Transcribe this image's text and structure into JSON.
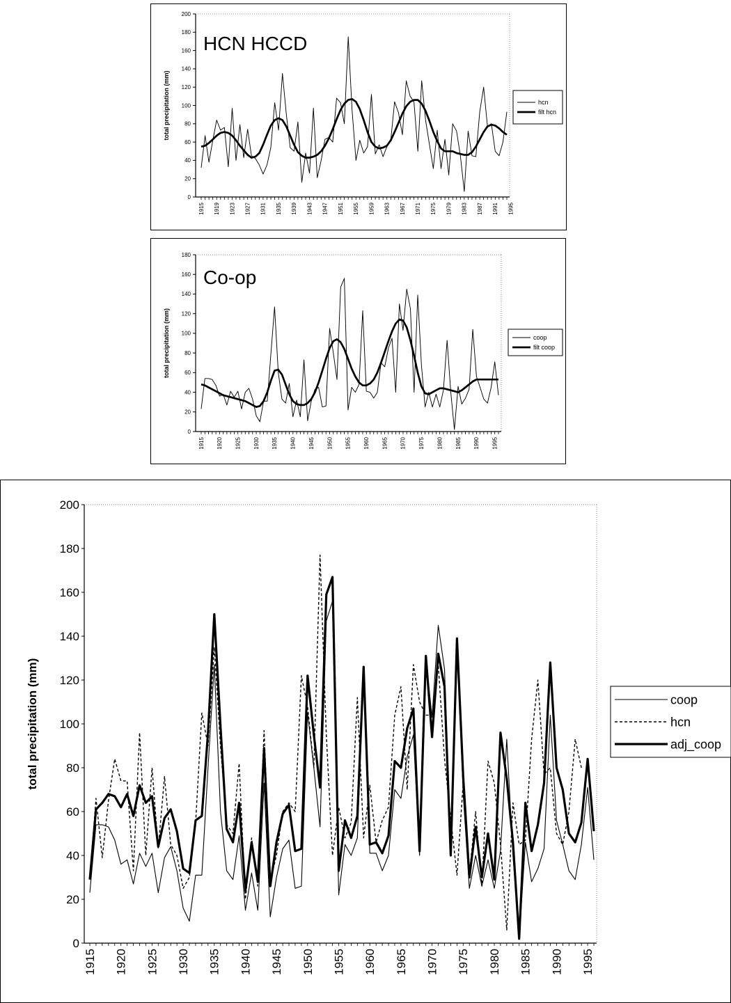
{
  "chart_data": [
    {
      "type": "line",
      "title": "HCN HCCD",
      "ylabel": "total precipitation (mm)",
      "xlabel": "",
      "ylim": [
        0,
        200
      ],
      "yticks": [
        0,
        20,
        40,
        60,
        80,
        100,
        120,
        140,
        160,
        180,
        200
      ],
      "xticks": [
        "1915",
        "1919",
        "1923",
        "1927",
        "1931",
        "1935",
        "1939",
        "1943",
        "1947",
        "1951",
        "1955",
        "1959",
        "1963",
        "1967",
        "1971",
        "1975",
        "1979",
        "1983",
        "1987",
        "1991",
        "1995"
      ],
      "x_start": 1915,
      "legend_position": "right",
      "series": [
        {
          "name": "hcn",
          "style": "thin",
          "values": [
            32,
            67,
            38,
            62,
            84,
            73,
            76,
            33,
            97,
            40,
            79,
            43,
            74,
            45,
            42,
            35,
            25,
            35,
            54,
            103,
            73,
            135,
            90,
            54,
            50,
            82,
            16,
            48,
            26,
            97,
            21,
            40,
            63,
            65,
            60,
            108,
            103,
            80,
            175,
            95,
            40,
            62,
            48,
            55,
            112,
            47,
            57,
            44,
            55,
            62,
            104,
            92,
            68,
            127,
            110,
            104,
            50,
            127,
            84,
            57,
            31,
            73,
            31,
            63,
            24,
            80,
            72,
            45,
            6,
            72,
            45,
            44,
            93,
            120,
            77,
            80,
            50,
            45,
            60,
            93
          ]
        },
        {
          "name": "filt hcn",
          "style": "thick",
          "values": [
            55,
            56,
            59,
            63,
            67,
            70,
            71,
            70,
            67,
            62,
            56,
            51,
            46,
            43,
            44,
            48,
            57,
            68,
            78,
            84,
            86,
            84,
            77,
            67,
            57,
            49,
            45,
            43,
            43,
            44,
            46,
            50,
            56,
            64,
            74,
            85,
            95,
            102,
            106,
            107,
            104,
            96,
            84,
            71,
            60,
            55,
            53,
            54,
            56,
            62,
            71,
            81,
            91,
            99,
            104,
            106,
            106,
            102,
            94,
            83,
            71,
            61,
            53,
            50,
            50,
            50,
            48,
            47,
            46,
            46,
            49,
            55,
            63,
            71,
            77,
            79,
            78,
            75,
            71,
            68
          ]
        }
      ]
    },
    {
      "type": "line",
      "title": "Co-op",
      "ylabel": "total precipitation (mm)",
      "xlabel": "",
      "ylim": [
        0,
        180
      ],
      "yticks": [
        0,
        20,
        40,
        60,
        80,
        100,
        120,
        140,
        160,
        180
      ],
      "xticks": [
        "1915",
        "1920",
        "1925",
        "1930",
        "1935",
        "1940",
        "1945",
        "1950",
        "1955",
        "1960",
        "1965",
        "1970",
        "1975",
        "1980",
        "1985",
        "1990",
        "1995"
      ],
      "x_start": 1915,
      "legend_position": "right",
      "series": [
        {
          "name": "coop",
          "style": "thin",
          "values": [
            23,
            54,
            54,
            53,
            47,
            36,
            38,
            27,
            41,
            35,
            41,
            23,
            40,
            44,
            33,
            16,
            10,
            31,
            31,
            80,
            127,
            60,
            33,
            29,
            49,
            15,
            32,
            15,
            73,
            11,
            31,
            43,
            45,
            25,
            26,
            105,
            80,
            53,
            147,
            156,
            22,
            45,
            40,
            48,
            123,
            41,
            40,
            34,
            40,
            70,
            66,
            85,
            95,
            40,
            130,
            103,
            145,
            125,
            40,
            139,
            68,
            25,
            40,
            25,
            38,
            25,
            42,
            93,
            40,
            2,
            46,
            28,
            34,
            43,
            104,
            56,
            45,
            33,
            29,
            45,
            71,
            37
          ]
        },
        {
          "name": "filt coop",
          "style": "thick",
          "values": [
            48,
            47,
            45,
            43,
            41,
            39,
            37,
            36,
            35,
            34,
            33,
            32,
            31,
            29,
            27,
            25,
            26,
            31,
            40,
            52,
            62,
            63,
            58,
            48,
            38,
            31,
            28,
            27,
            27,
            29,
            33,
            40,
            50,
            62,
            74,
            85,
            92,
            94,
            91,
            84,
            74,
            64,
            56,
            50,
            47,
            47,
            49,
            53,
            60,
            70,
            81,
            92,
            102,
            110,
            114,
            113,
            106,
            93,
            77,
            60,
            46,
            39,
            38,
            40,
            42,
            44,
            44,
            43,
            42,
            41,
            40,
            42,
            45,
            48,
            51,
            53,
            53,
            53,
            53,
            53,
            53,
            53
          ]
        }
      ]
    },
    {
      "type": "line",
      "title": "",
      "ylabel": "total precipitation (mm)",
      "xlabel": "",
      "ylim": [
        0,
        200
      ],
      "yticks": [
        0,
        20,
        40,
        60,
        80,
        100,
        120,
        140,
        160,
        180,
        200
      ],
      "xticks": [
        "1915",
        "1920",
        "1925",
        "1930",
        "1935",
        "1940",
        "1945",
        "1950",
        "1955",
        "1960",
        "1965",
        "1970",
        "1975",
        "1980",
        "1985",
        "1990",
        "1995"
      ],
      "x_start": 1915,
      "legend_position": "right",
      "series": [
        {
          "name": "coop",
          "style": "thin",
          "values": [
            23,
            54,
            54,
            53,
            47,
            36,
            38,
            27,
            41,
            35,
            41,
            23,
            39,
            44,
            33,
            16,
            10,
            31,
            31,
            80,
            127,
            60,
            33,
            29,
            49,
            15,
            32,
            15,
            73,
            12,
            30,
            43,
            47,
            25,
            26,
            105,
            80,
            53,
            147,
            156,
            22,
            45,
            40,
            48,
            123,
            41,
            41,
            33,
            40,
            70,
            66,
            85,
            95,
            40,
            130,
            103,
            145,
            125,
            40,
            139,
            68,
            25,
            40,
            26,
            38,
            25,
            42,
            93,
            40,
            2,
            46,
            28,
            34,
            43,
            104,
            56,
            45,
            33,
            29,
            45,
            71,
            38
          ]
        },
        {
          "name": "hcn",
          "style": "dashed",
          "values": [
            30,
            66,
            39,
            65,
            84,
            74,
            74,
            33,
            96,
            40,
            80,
            43,
            76,
            45,
            40,
            25,
            30,
            55,
            105,
            90,
            135,
            90,
            54,
            50,
            82,
            20,
            48,
            26,
            97,
            28,
            40,
            60,
            64,
            60,
            122,
            108,
            80,
            177,
            95,
            40,
            62,
            48,
            55,
            112,
            48,
            72,
            46,
            56,
            62,
            104,
            117,
            70,
            127,
            110,
            104,
            104,
            127,
            84,
            57,
            31,
            73,
            31,
            60,
            26,
            83,
            73,
            45,
            6,
            64,
            45,
            47,
            93,
            120,
            77,
            80,
            50,
            45,
            60,
            93,
            80
          ]
        },
        {
          "name": "adj_coop",
          "style": "thick",
          "values": [
            29,
            61,
            64,
            68,
            67,
            62,
            68,
            58,
            72,
            64,
            67,
            44,
            57,
            61,
            51,
            34,
            32,
            56,
            58,
            96,
            150,
            99,
            52,
            46,
            64,
            24,
            46,
            28,
            89,
            26,
            46,
            59,
            63,
            42,
            43,
            122,
            95,
            71,
            159,
            167,
            33,
            56,
            48,
            58,
            126,
            45,
            46,
            41,
            49,
            83,
            80,
            98,
            107,
            42,
            131,
            94,
            132,
            117,
            40,
            139,
            76,
            30,
            53,
            30,
            50,
            29,
            96,
            75,
            46,
            2,
            64,
            42,
            54,
            73,
            128,
            80,
            70,
            50,
            46,
            55,
            84,
            51
          ]
        }
      ]
    }
  ]
}
